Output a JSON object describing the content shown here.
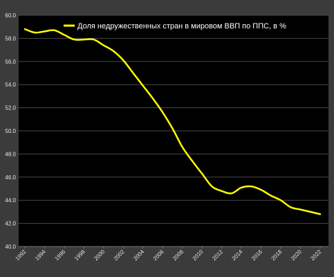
{
  "chart_data": {
    "type": "line",
    "title": "",
    "xlabel": "",
    "ylabel": "",
    "ylim": [
      40.0,
      60.0
    ],
    "y_ticks": [
      "40.0",
      "42.0",
      "44.0",
      "46.0",
      "48.0",
      "50.0",
      "52.0",
      "54.0",
      "56.0",
      "58.0",
      "60.0"
    ],
    "x_ticks": [
      "1992",
      "1994",
      "1996",
      "1998",
      "2000",
      "2002",
      "2004",
      "2006",
      "2008",
      "2010",
      "2012",
      "2014",
      "2016",
      "2018",
      "2020",
      "2022"
    ],
    "grid": true,
    "legend_position": "top",
    "series": [
      {
        "name": "Доля недружественных стран в мировом ВВП по ППС, в %",
        "color": "#ffff00",
        "x": [
          1992,
          1993,
          1994,
          1995,
          1996,
          1997,
          1998,
          1999,
          2000,
          2001,
          2002,
          2003,
          2004,
          2005,
          2006,
          2007,
          2008,
          2009,
          2010,
          2011,
          2012,
          2013,
          2014,
          2015,
          2016,
          2017,
          2018,
          2019,
          2020,
          2021,
          2022
        ],
        "values": [
          58.8,
          58.5,
          58.6,
          58.7,
          58.3,
          57.9,
          57.9,
          57.9,
          57.4,
          56.9,
          56.1,
          55.0,
          53.9,
          52.8,
          51.6,
          50.2,
          48.6,
          47.4,
          46.3,
          45.2,
          44.8,
          44.6,
          45.1,
          45.2,
          44.9,
          44.4,
          44.0,
          43.4,
          43.2,
          43.0,
          42.8
        ]
      }
    ]
  }
}
